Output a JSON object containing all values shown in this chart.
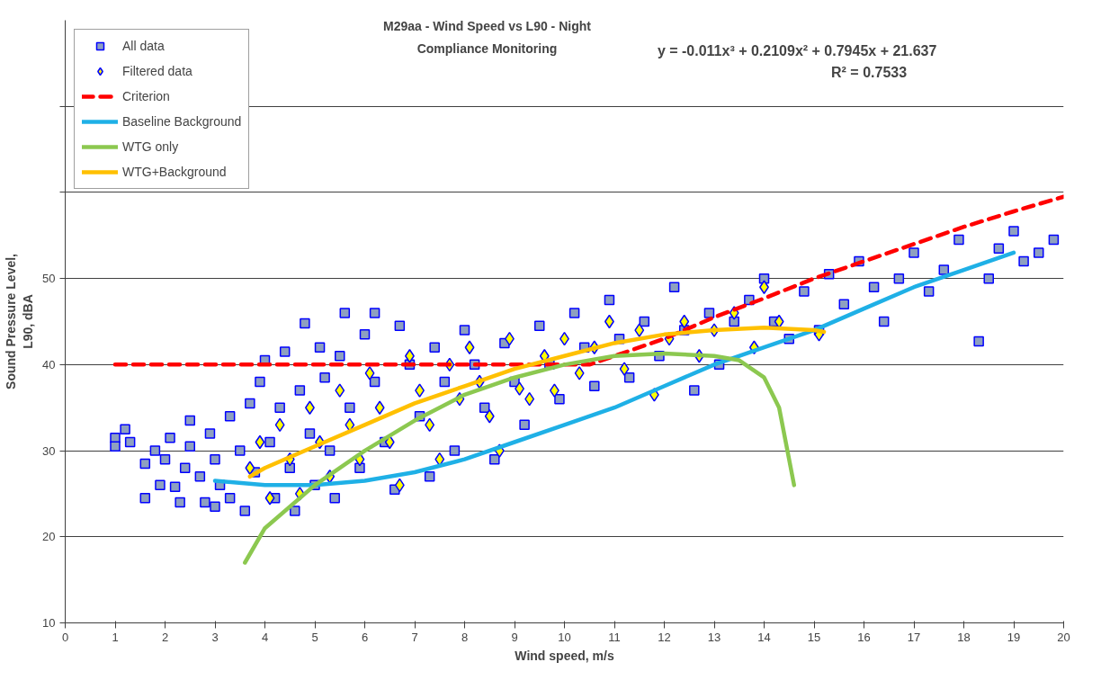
{
  "chart_data": {
    "type": "scatter",
    "title": "M29aa - Wind Speed vs L90 - Night",
    "subtitle": "Compliance Monitoring",
    "xlabel": "Wind speed, m/s",
    "ylabel": "Sound Pressure Level,\nL90, dBA",
    "annotations": [
      "y = -0.011x³ + 0.2109x² + 0.7945x + 21.637",
      "R² = 0.7533"
    ],
    "xlim": [
      0,
      20
    ],
    "xticks": [
      0,
      1,
      2,
      3,
      4,
      5,
      6,
      7,
      8,
      9,
      10,
      11,
      12,
      13,
      14,
      15,
      16,
      17,
      18,
      19,
      20
    ],
    "ylim": [
      10,
      80
    ],
    "yticks": [
      10,
      20,
      30,
      40,
      50,
      {
        "value": 60,
        "label": null
      },
      {
        "value": 70,
        "label": null
      }
    ],
    "grid": "y",
    "legend": "top left",
    "series": [
      {
        "name": "All data",
        "marker": "square",
        "color": "#8ea0c0",
        "x": [
          1.0,
          1.0,
          1.2,
          1.3,
          1.6,
          1.6,
          1.8,
          1.9,
          2.0,
          2.1,
          2.2,
          2.3,
          2.4,
          2.5,
          2.5,
          2.7,
          2.8,
          2.9,
          3.0,
          3.0,
          3.1,
          3.3,
          3.3,
          3.5,
          3.6,
          3.7,
          3.8,
          3.9,
          4.0,
          4.1,
          4.2,
          4.3,
          4.4,
          4.5,
          4.6,
          4.7,
          4.8,
          4.9,
          5.0,
          5.1,
          5.2,
          5.3,
          5.4,
          5.5,
          5.6,
          5.7,
          5.9,
          6.0,
          6.2,
          6.2,
          6.4,
          6.6,
          6.7,
          6.9,
          7.1,
          7.3,
          7.4,
          7.6,
          7.8,
          8.0,
          8.2,
          8.4,
          8.6,
          8.8,
          9.0,
          9.2,
          9.5,
          9.7,
          9.9,
          10.2,
          10.4,
          10.6,
          10.9,
          11.1,
          11.3,
          11.6,
          11.9,
          12.2,
          12.4,
          12.6,
          12.9,
          13.1,
          13.4,
          13.7,
          14.0,
          14.2,
          14.5,
          14.8,
          15.1,
          15.3,
          15.6,
          15.9,
          16.2,
          16.4,
          16.7,
          17.0,
          17.3,
          17.6,
          17.9,
          18.3,
          18.5,
          18.7,
          19.0,
          19.2,
          19.5,
          19.8
        ],
        "values": [
          31.5,
          30.5,
          32.5,
          31,
          28.5,
          24.5,
          30,
          26,
          29,
          31.5,
          25.8,
          24,
          28,
          30.5,
          33.5,
          27,
          24,
          32,
          29,
          23.5,
          26,
          34,
          24.5,
          30,
          23,
          35.5,
          27.5,
          38,
          40.5,
          31,
          24.5,
          35,
          41.5,
          28,
          23,
          37,
          44.8,
          32,
          26,
          42,
          38.5,
          30,
          24.5,
          41,
          46,
          35,
          28,
          43.5,
          46,
          38,
          31,
          25.5,
          44.5,
          40,
          34,
          27,
          42,
          38,
          30,
          44,
          40,
          35,
          29,
          42.5,
          38,
          33,
          44.5,
          40,
          36,
          46,
          42,
          37.5,
          47.5,
          43,
          38.5,
          45,
          41,
          49,
          44,
          37,
          46,
          40,
          45,
          47.5,
          50,
          45,
          43,
          48.5,
          44,
          50.5,
          47,
          52,
          49,
          45,
          50,
          53,
          48.5,
          51,
          54.5,
          42.7,
          50,
          53.5,
          55.5,
          52,
          53,
          54.5
        ]
      },
      {
        "name": "Filtered data",
        "marker": "diamond",
        "color": "#ffff00",
        "x": [
          3.7,
          3.9,
          4.1,
          4.3,
          4.5,
          4.7,
          4.9,
          5.1,
          5.3,
          5.5,
          5.7,
          5.9,
          6.1,
          6.3,
          6.5,
          6.7,
          6.9,
          7.1,
          7.3,
          7.5,
          7.7,
          7.9,
          8.1,
          8.3,
          8.5,
          8.7,
          8.9,
          9.1,
          9.3,
          9.6,
          9.8,
          10.0,
          10.3,
          10.6,
          10.9,
          11.2,
          11.5,
          11.8,
          12.1,
          12.4,
          12.7,
          13.0,
          13.4,
          13.8,
          14.0,
          14.3,
          15.1
        ],
        "values": [
          28,
          31,
          24.5,
          33,
          29,
          25,
          35,
          31,
          27,
          37,
          33,
          29,
          39,
          35,
          31,
          26,
          41,
          37,
          33,
          29,
          40,
          36,
          42,
          38,
          34,
          30,
          43,
          37.2,
          36,
          41,
          37,
          43,
          39,
          42,
          45,
          39.5,
          44,
          36.5,
          43,
          45,
          41,
          44,
          46,
          42,
          49,
          45,
          43.5
        ]
      },
      {
        "name": "Criterion",
        "type": "line",
        "line_style": "dashed",
        "color": "#ff0000",
        "x": [
          1,
          2,
          4,
          6,
          8,
          10,
          10.5,
          11,
          12,
          13,
          14,
          15,
          16,
          17,
          18,
          19,
          20
        ],
        "values": [
          40,
          40,
          40,
          40,
          40,
          40,
          40,
          41,
          43,
          45.5,
          47.7,
          50,
          52,
          54,
          56,
          57.8,
          59.5
        ]
      },
      {
        "name": "Baseline Background",
        "type": "line",
        "line_style": "solid",
        "color": "#1fb0e6",
        "x": [
          3,
          4,
          5,
          6,
          7,
          8,
          9,
          10,
          11,
          12,
          13,
          14,
          15,
          16,
          17,
          18,
          19
        ],
        "values": [
          26.5,
          26,
          26,
          26.5,
          27.5,
          29,
          31,
          33,
          35,
          37.5,
          40,
          42,
          44,
          46.5,
          49,
          51,
          53
        ]
      },
      {
        "name": "WTG only",
        "type": "line",
        "line_style": "solid",
        "color": "#8cc850",
        "x": [
          3.6,
          4,
          5,
          6,
          7,
          8,
          9,
          10,
          11,
          12,
          13,
          13.5,
          14,
          14.3,
          14.6
        ],
        "values": [
          17,
          21,
          26,
          30,
          33.5,
          36.5,
          38.5,
          40,
          41,
          41.3,
          41,
          40.5,
          38.5,
          35,
          26
        ]
      },
      {
        "name": "WTG+Background",
        "type": "line",
        "line_style": "solid",
        "color": "#ffc000",
        "x": [
          3.7,
          4,
          5,
          6,
          7,
          8,
          9,
          10,
          11,
          12,
          13,
          14,
          15,
          15.2
        ],
        "values": [
          27,
          28,
          30.5,
          33,
          35.5,
          37.5,
          39.5,
          41,
          42.5,
          43.5,
          44,
          44.3,
          44,
          43.8
        ]
      }
    ]
  }
}
